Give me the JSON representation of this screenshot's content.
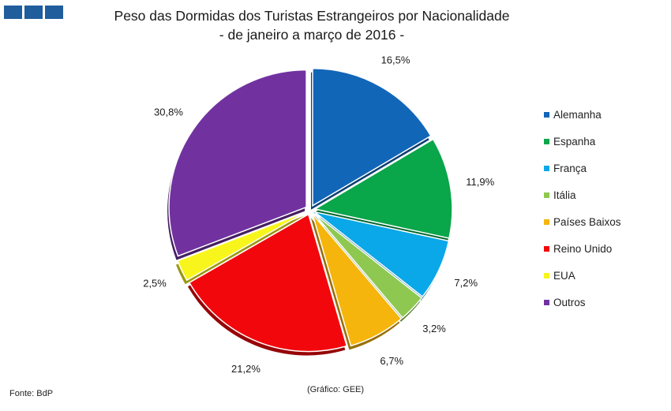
{
  "logo": {
    "name": "header-logo-blocks",
    "blocks": 3,
    "color": "#1f5d9c"
  },
  "chart_data": {
    "type": "pie",
    "title": "Peso das Dormidas dos Turistas Estrangeiros por Nacionalidade",
    "subtitle": "- de janeiro a março de 2016 -",
    "legend_position": "right",
    "slices": [
      {
        "label": "Alemanha",
        "value": 16.5,
        "display": "16,5%",
        "color": "#1266b8"
      },
      {
        "label": "Espanha",
        "value": 11.9,
        "display": "11,9%",
        "color": "#0aa64a"
      },
      {
        "label": "França",
        "value": 7.2,
        "display": "7,2%",
        "color": "#0aa8e8"
      },
      {
        "label": "Itália",
        "value": 3.2,
        "display": "3,2%",
        "color": "#8ec850"
      },
      {
        "label": "Países Baixos",
        "value": 6.7,
        "display": "6,7%",
        "color": "#f5b50c"
      },
      {
        "label": "Reino Unido",
        "value": 21.2,
        "display": "21,2%",
        "color": "#f2080c"
      },
      {
        "label": "EUA",
        "value": 2.5,
        "display": "2,5%",
        "color": "#f8f51c"
      },
      {
        "label": "Outros",
        "value": 30.8,
        "display": "30,8%",
        "color": "#7132a0"
      }
    ]
  },
  "footer": {
    "source": "Fonte: BdP",
    "credit": "(Gráfico: GEE)"
  }
}
